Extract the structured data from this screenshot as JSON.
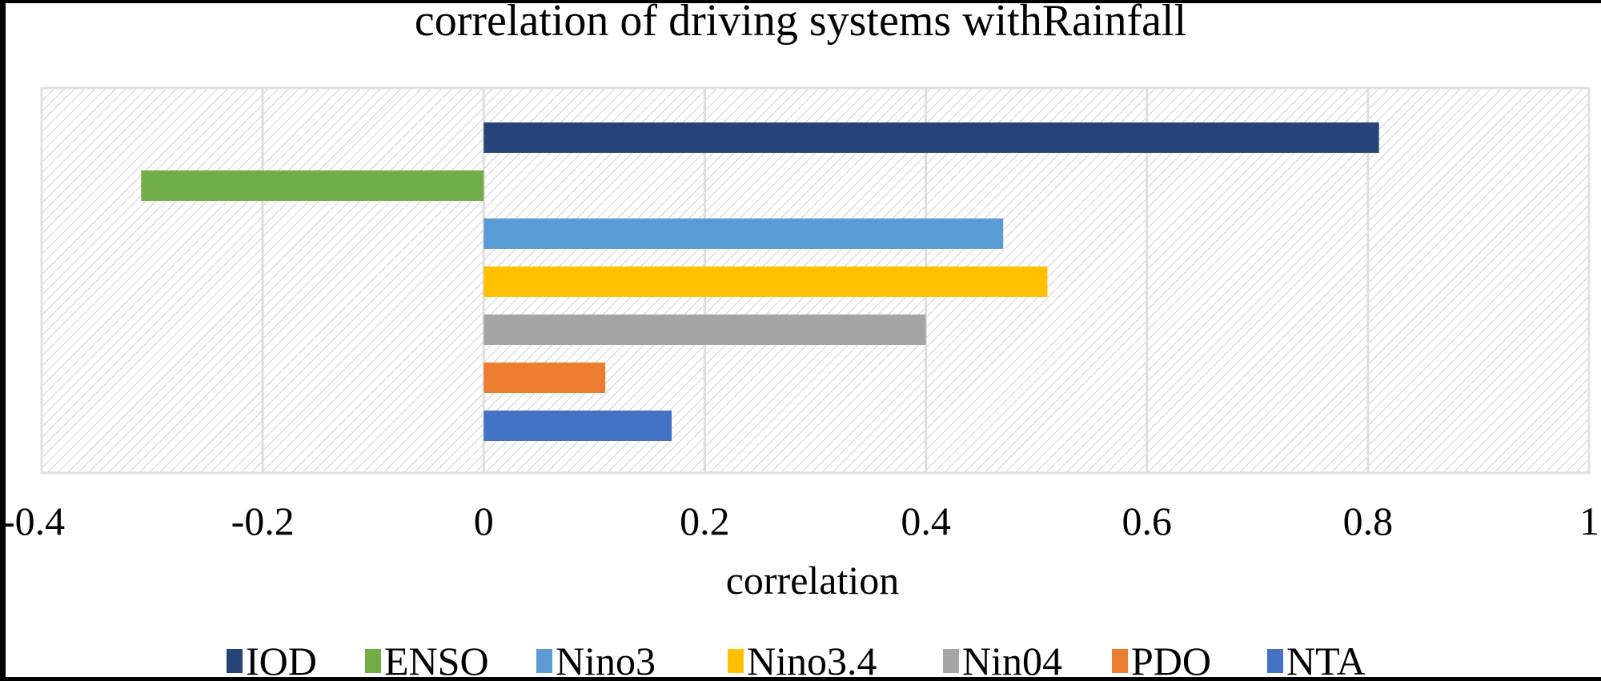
{
  "chart_data": {
    "type": "bar",
    "orientation": "horizontal",
    "title": "correlation of driving systems withRainfall",
    "xlabel": "correlation",
    "ylabel": "",
    "xlim": [
      -0.4,
      1
    ],
    "xticks": [
      "-0.4",
      "-0.2",
      "0",
      "0.2",
      "0.4",
      "0.6",
      "0.8",
      "1"
    ],
    "grid": true,
    "legend_position": "bottom",
    "series": [
      {
        "name": "IOD",
        "value": 0.81,
        "color": "#264478"
      },
      {
        "name": "ENSO",
        "value": -0.31,
        "color": "#70AD47"
      },
      {
        "name": "Nino3",
        "value": 0.47,
        "color": "#5B9BD5"
      },
      {
        "name": "Nino3.4",
        "value": 0.51,
        "color": "#FFC000"
      },
      {
        "name": "Nin04",
        "value": 0.4,
        "color": "#A5A5A5"
      },
      {
        "name": "PDO",
        "value": 0.11,
        "color": "#ED7D31"
      },
      {
        "name": "NTA",
        "value": 0.17,
        "color": "#4472C4"
      }
    ]
  }
}
